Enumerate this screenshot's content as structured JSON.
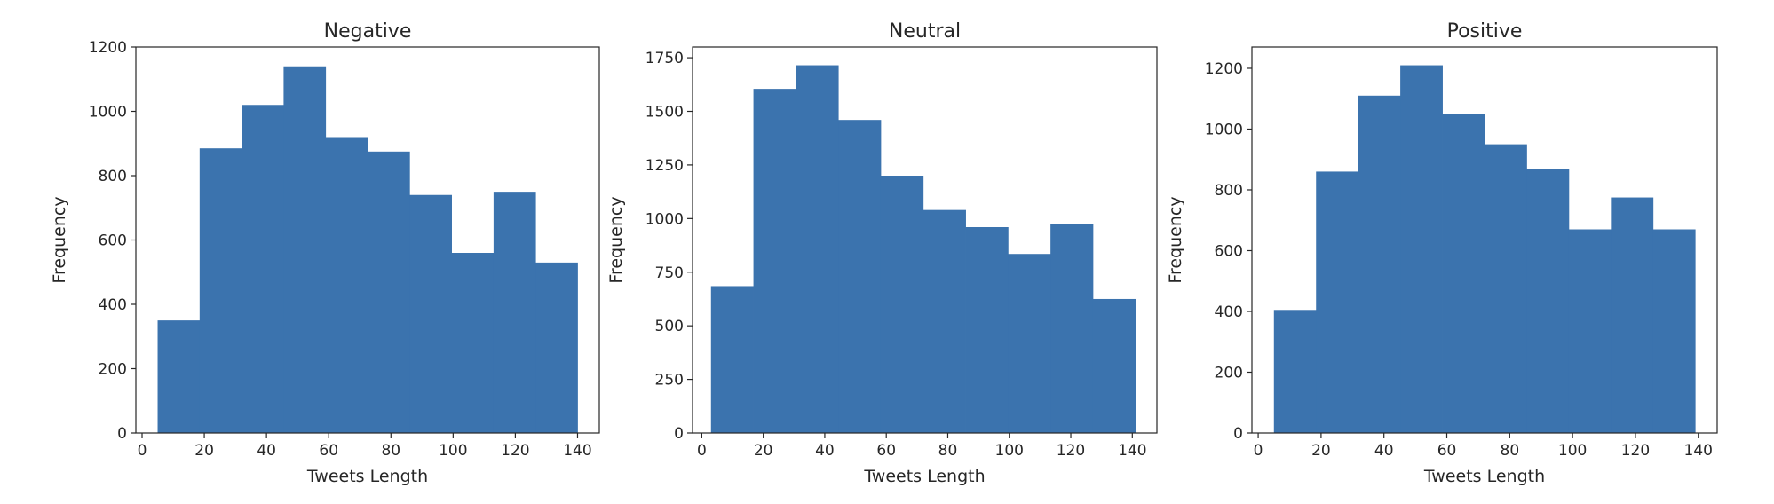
{
  "chart_data": [
    {
      "type": "bar",
      "title": "Negative",
      "xlabel": "Tweets Length",
      "ylabel": "Frequency",
      "bin_edges": [
        5,
        18.5,
        32,
        45.5,
        59,
        72.5,
        86,
        99.5,
        113,
        126.5,
        140
      ],
      "values": [
        350,
        885,
        1020,
        1140,
        920,
        875,
        740,
        560,
        750,
        530
      ],
      "xlim": [
        -2,
        147
      ],
      "ylim": [
        0,
        1200
      ],
      "xticks": [
        0,
        20,
        40,
        60,
        80,
        100,
        120,
        140
      ],
      "yticks": [
        0,
        200,
        400,
        600,
        800,
        1000,
        1200
      ],
      "color": "#3b73ae",
      "grid": false
    },
    {
      "type": "bar",
      "title": "Neutral",
      "xlabel": "Tweets Length",
      "ylabel": "Frequency",
      "bin_edges": [
        3,
        16.8,
        30.6,
        44.4,
        58.2,
        72,
        85.8,
        99.6,
        113.4,
        127.2,
        141
      ],
      "values": [
        685,
        1605,
        1715,
        1460,
        1200,
        1040,
        960,
        835,
        975,
        625
      ],
      "xlim": [
        -3,
        148
      ],
      "ylim": [
        0,
        1800
      ],
      "xticks": [
        0,
        20,
        40,
        60,
        80,
        100,
        120,
        140
      ],
      "yticks": [
        0,
        250,
        500,
        750,
        1000,
        1250,
        1500,
        1750
      ],
      "color": "#3b73ae",
      "grid": false
    },
    {
      "type": "bar",
      "title": "Positive",
      "xlabel": "Tweets Length",
      "ylabel": "Frequency",
      "bin_edges": [
        5,
        18.4,
        31.8,
        45.2,
        58.6,
        72,
        85.4,
        98.8,
        112.2,
        125.6,
        139
      ],
      "values": [
        405,
        860,
        1110,
        1210,
        1050,
        950,
        870,
        670,
        775,
        670
      ],
      "xlim": [
        -2,
        146
      ],
      "ylim": [
        0,
        1270
      ],
      "xticks": [
        0,
        20,
        40,
        60,
        80,
        100,
        120,
        140
      ],
      "yticks": [
        0,
        200,
        400,
        600,
        800,
        1000,
        1200
      ],
      "color": "#3b73ae",
      "grid": false
    }
  ]
}
